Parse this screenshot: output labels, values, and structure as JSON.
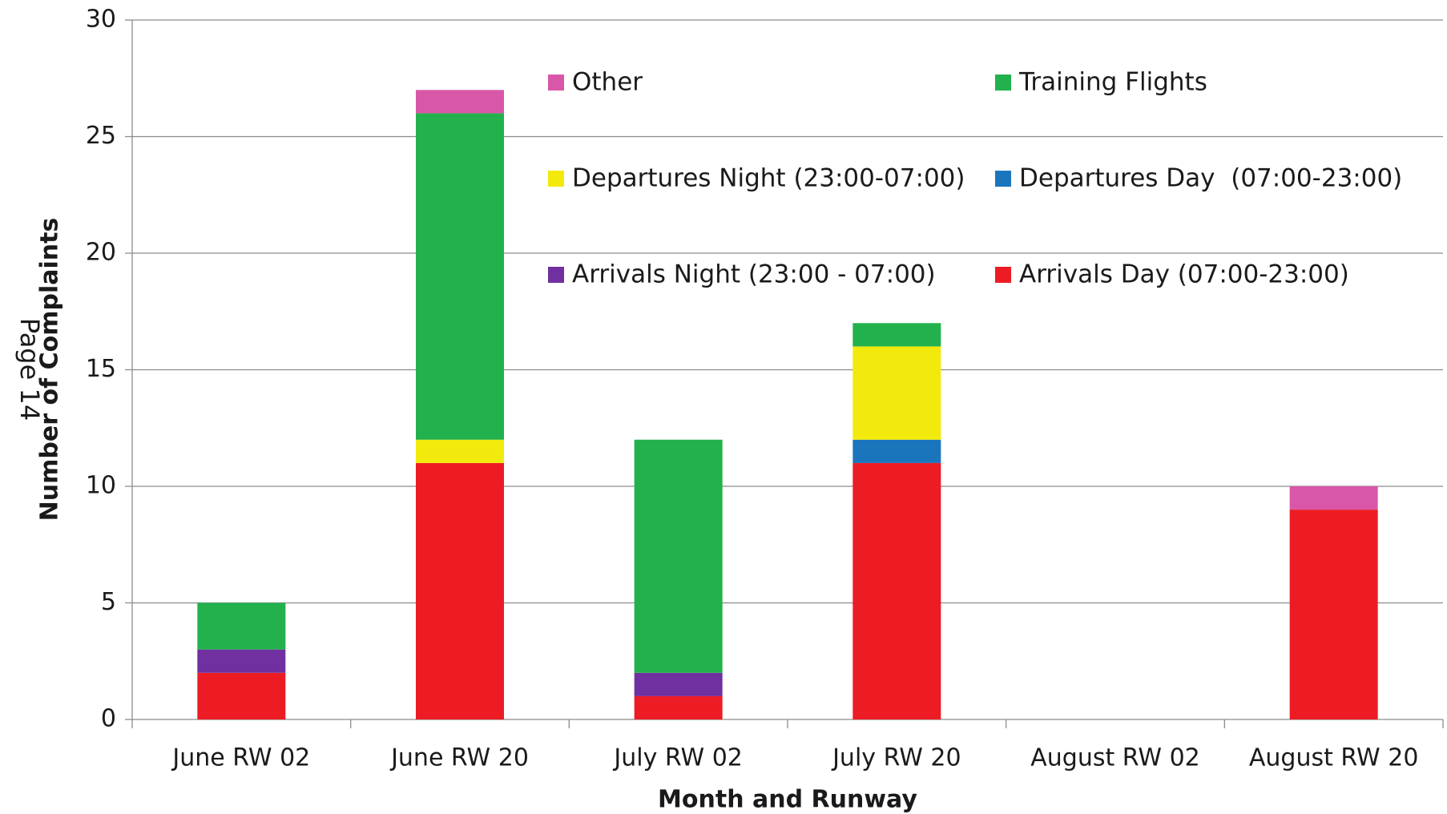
{
  "chart_data": {
    "type": "stacked_bar",
    "page_label": "Page 14",
    "x_label": "Month and Runway",
    "y_label": "Number of Complaints",
    "categories": [
      "June RW 02",
      "June  RW 20",
      "July RW 02",
      "July RW 20",
      "August RW 02",
      "August RW 20"
    ],
    "series": [
      {
        "name": "Arrivals Day (07:00-23:00)",
        "color": "#ed1c24",
        "values": [
          2,
          11,
          1,
          11,
          0,
          9
        ]
      },
      {
        "name": "Arrivals Night (23:00 - 07:00)",
        "color": "#7030a0",
        "values": [
          1,
          0,
          1,
          0,
          0,
          0
        ]
      },
      {
        "name": "Departures Day  (07:00-23:00)",
        "color": "#1b75bc",
        "values": [
          0,
          0,
          0,
          1,
          0,
          0
        ]
      },
      {
        "name": "Departures Night (23:00-07:00)",
        "color": "#f2ea0c",
        "values": [
          0,
          1,
          0,
          4,
          0,
          0
        ]
      },
      {
        "name": "Training Flights",
        "color": "#22b14c",
        "values": [
          2,
          14,
          10,
          1,
          0,
          0
        ]
      },
      {
        "name": "Other",
        "color": "#d957a8",
        "values": [
          0,
          1,
          0,
          0,
          0,
          1
        ]
      }
    ],
    "ylim": [
      0,
      30
    ],
    "yticks": [
      0,
      5,
      10,
      15,
      20,
      25,
      30
    ],
    "grid": true
  }
}
